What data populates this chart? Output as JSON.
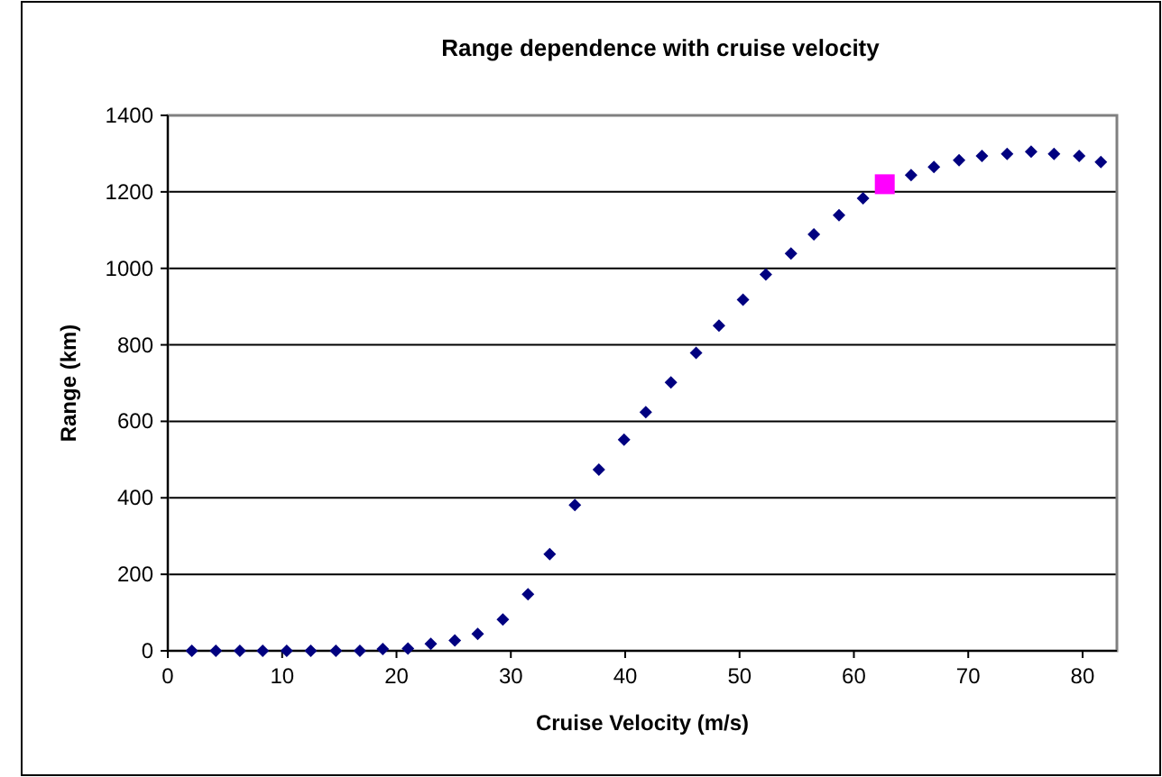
{
  "chart_data": {
    "type": "scatter",
    "title": "Range dependence with cruise velocity",
    "xlabel": "Cruise Velocity (m/s)",
    "ylabel": "Range (km)",
    "xlim": [
      0,
      83
    ],
    "xticks": [
      0,
      10,
      20,
      30,
      40,
      50,
      60,
      70,
      80
    ],
    "ylim": [
      0,
      1400
    ],
    "yticks": [
      0,
      200,
      400,
      600,
      800,
      1000,
      1200,
      1400
    ],
    "grid": "y",
    "series": [
      {
        "color": "#000080",
        "marker": "diamond",
        "x": [
          2.1,
          4.2,
          6.3,
          8.3,
          10.4,
          12.5,
          14.7,
          16.8,
          18.8,
          21,
          23,
          25.1,
          27.1,
          29.3,
          31.5,
          33.4,
          35.6,
          37.7,
          39.9,
          41.8,
          44,
          46.2,
          48.2,
          50.3,
          52.3,
          54.5,
          56.5,
          58.7,
          60.8,
          65,
          67,
          69.2,
          71.2,
          73.4,
          75.5,
          77.5,
          79.7,
          81.6
        ],
        "values": [
          0,
          0,
          0,
          0,
          0,
          0,
          0,
          0,
          5,
          6,
          18,
          27,
          44,
          82,
          148,
          253,
          381,
          474,
          552,
          624,
          702,
          779,
          850,
          918,
          984,
          1039,
          1089,
          1139,
          1183,
          1244,
          1265,
          1283,
          1294,
          1299,
          1305,
          1299,
          1294,
          1278
        ]
      },
      {
        "color": "#ff00ff",
        "marker": "square",
        "x": [
          62.7
        ],
        "values": [
          1220
        ]
      }
    ]
  }
}
